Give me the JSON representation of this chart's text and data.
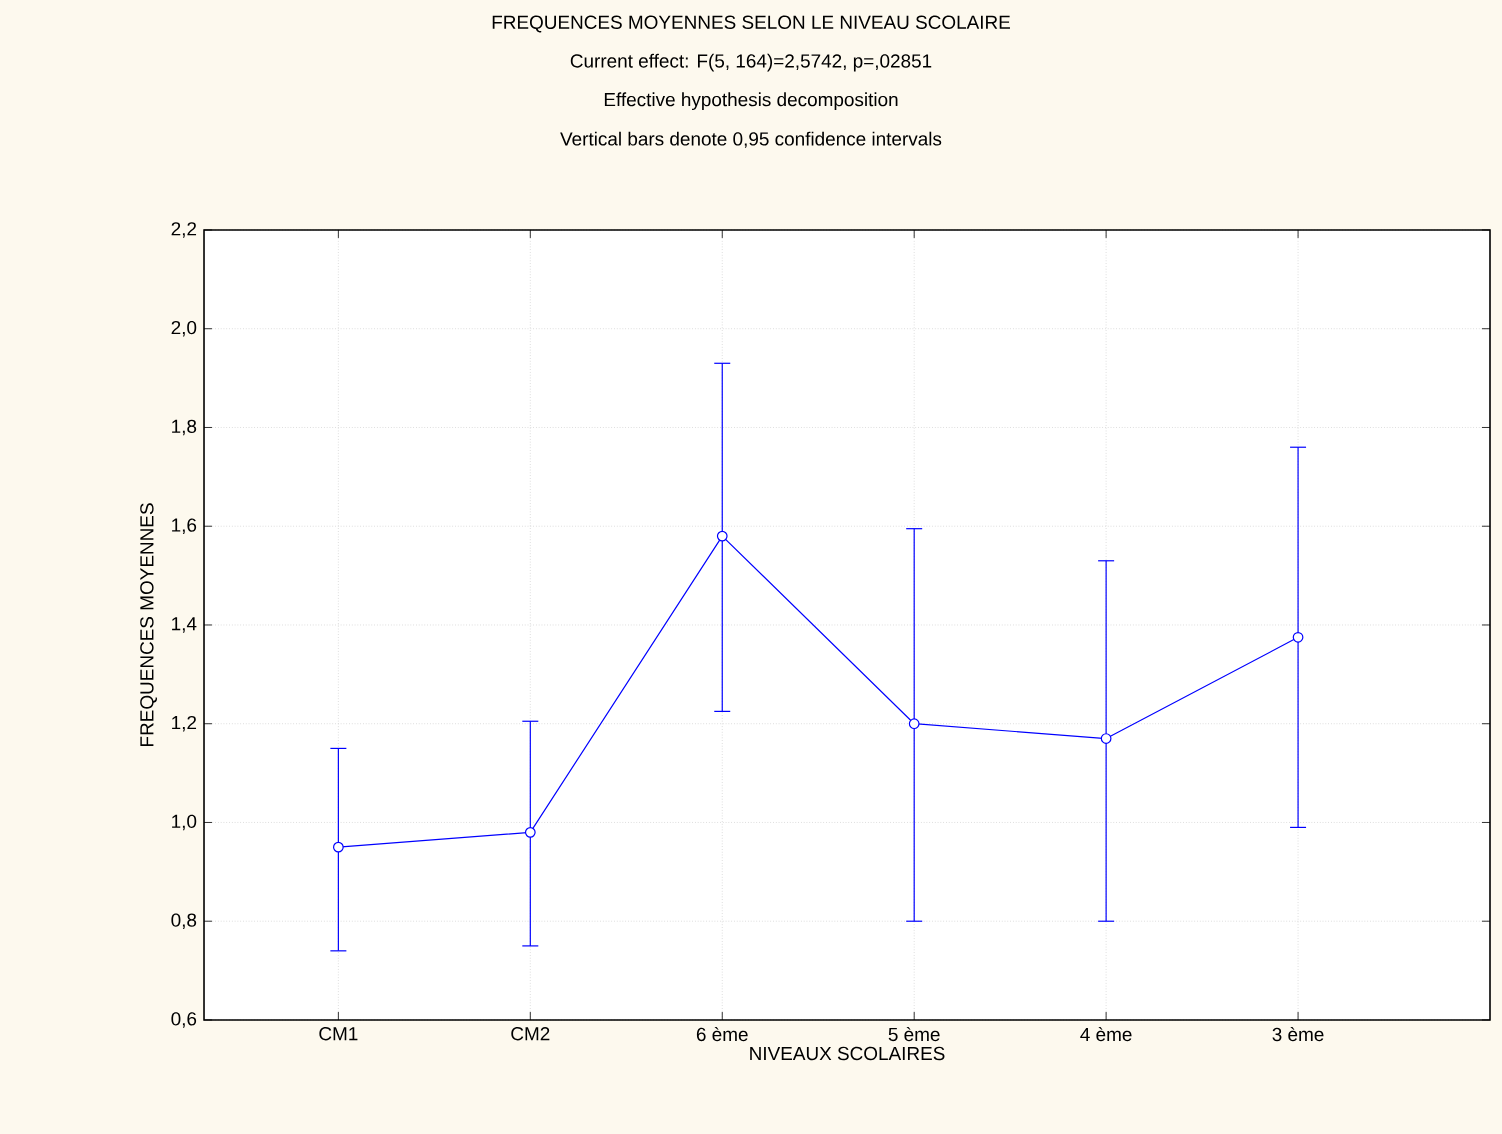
{
  "chart_data": {
    "type": "line",
    "title": "FREQUENCES MOYENNES SELON LE NIVEAU SCOLAIRE",
    "subtitle": "Current effect: F(5, 164)=2,5742, p=,02851",
    "annotations": [
      "Effective hypothesis decomposition",
      "Vertical bars denote 0,95 confidence intervals"
    ],
    "xlabel": "NIVEAUX SCOLAIRES",
    "ylabel": "FREQUENCES MOYENNES",
    "categories": [
      "CM1",
      "CM2",
      "6 ème",
      "5 ème",
      "4 ème",
      "3 ème"
    ],
    "values": [
      0.95,
      0.98,
      1.58,
      1.2,
      1.17,
      1.375
    ],
    "errors": [
      [
        0.74,
        1.15
      ],
      [
        0.75,
        1.205
      ],
      [
        1.225,
        1.93
      ],
      [
        0.8,
        1.595
      ],
      [
        0.8,
        1.53
      ],
      [
        0.99,
        1.76
      ]
    ],
    "color": "#0000ff",
    "marker": "circle",
    "line_style": "solid",
    "grid": true,
    "ylim": [
      0.6,
      2.2
    ],
    "yticks": [
      {
        "value": 0.6,
        "label": "0,6"
      },
      {
        "value": 0.8,
        "label": "0,8"
      },
      {
        "value": 1.0,
        "label": "1,0"
      },
      {
        "value": 1.2,
        "label": "1,2"
      },
      {
        "value": 1.4,
        "label": "1,4"
      },
      {
        "value": 1.6,
        "label": "1,6"
      },
      {
        "value": 1.8,
        "label": "1,8"
      },
      {
        "value": 2.0,
        "label": "2,0"
      },
      {
        "value": 2.2,
        "label": "2,2"
      }
    ]
  }
}
